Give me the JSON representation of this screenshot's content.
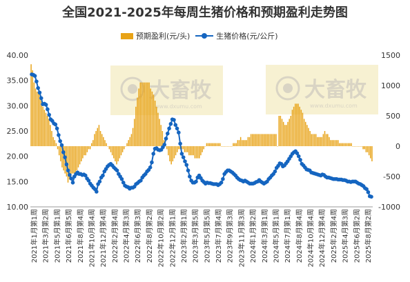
{
  "chart_data": {
    "type": "bar+line",
    "title": "全国2021-2025年每周生猪价格和预期盈利走势图",
    "legend": [
      "预期盈利(元/头)",
      "生猪价格(元/公斤)"
    ],
    "legend_position": "top",
    "grid": false,
    "y_left": {
      "ticks": [
        "10.00",
        "15.00",
        "20.00",
        "25.00",
        "30.00",
        "35.00",
        "40.00"
      ],
      "range": [
        10,
        40
      ]
    },
    "y_right": {
      "ticks": [
        "-1000",
        "-500",
        "0",
        "500",
        "1000",
        "1500"
      ],
      "range": [
        -1000,
        1500
      ]
    },
    "x_labels": [
      "2021年1月第1周",
      "2021年3月第2周",
      "2021年5月第1周",
      "2021年6月第5周",
      "2021年8月第4周",
      "2021年10月第4周",
      "2021年12月第4周",
      "2022年2月第4周",
      "2022年4月第3周",
      "2022年6月第3周",
      "2022年8月第2周",
      "2022年10月第2周",
      "2022年12月第1周",
      "2023年2月第1周",
      "2023年3月第5周",
      "2023年5月第5周",
      "2023年7月第4周",
      "2023年9月第3周",
      "2023年11月第3周",
      "2024年1月第2周",
      "2024年3月第1周",
      "2024年5月第1周",
      "2024年7月第1周",
      "2024年8月第4周",
      "2024年10月第4周",
      "2024年12月第4周",
      "2025年2月第4周",
      "2025年4月第3周",
      "2025年6月第2周",
      "2025年8月第2周"
    ],
    "series": [
      {
        "name": "预期盈利(元/头)",
        "axis": "right",
        "type": "bar",
        "values": [
          1350,
          1250,
          1050,
          950,
          900,
          900,
          850,
          750,
          650,
          600,
          550,
          500,
          450,
          350,
          250,
          150,
          100,
          50,
          -50,
          -150,
          -250,
          -350,
          -400,
          -450,
          -500,
          -600,
          -550,
          -500,
          -450,
          -450,
          -500,
          -400,
          -350,
          -300,
          -250,
          -200,
          -150,
          -150,
          -100,
          -50,
          -50,
          50,
          100,
          200,
          250,
          300,
          350,
          250,
          200,
          150,
          100,
          50,
          0,
          -50,
          -100,
          -150,
          -200,
          -250,
          -300,
          -250,
          -200,
          -150,
          -100,
          -50,
          0,
          50,
          100,
          150,
          200,
          300,
          450,
          650,
          800,
          950,
          1050,
          1050,
          1050,
          1050,
          1050,
          1050,
          1050,
          950,
          900,
          850,
          750,
          650,
          550,
          450,
          350,
          250,
          100,
          0,
          -50,
          -150,
          -250,
          -300,
          -250,
          -200,
          -150,
          -100,
          -50,
          -50,
          -50,
          -50,
          -100,
          -100,
          -100,
          -150,
          -150,
          -150,
          -150,
          -200,
          -200,
          -200,
          -200,
          -150,
          -100,
          -50,
          0,
          50,
          50,
          50,
          50,
          50,
          50,
          50,
          50,
          50,
          50,
          0,
          0,
          0,
          0,
          0,
          0,
          0,
          0,
          50,
          50,
          50,
          100,
          100,
          150,
          100,
          100,
          100,
          100,
          150,
          150,
          200,
          200,
          200,
          200,
          200,
          200,
          200,
          200,
          200,
          200,
          200,
          200,
          200,
          200,
          200,
          200,
          200,
          200,
          0,
          500,
          500,
          450,
          400,
          350,
          350,
          400,
          450,
          500,
          600,
          650,
          700,
          700,
          700,
          650,
          600,
          550,
          450,
          400,
          350,
          300,
          250,
          200,
          200,
          200,
          200,
          150,
          150,
          150,
          150,
          200,
          250,
          200,
          200,
          150,
          100,
          100,
          100,
          100,
          100,
          100,
          50,
          50,
          50,
          50,
          50,
          50,
          50,
          50,
          50,
          0,
          0,
          0,
          0,
          0,
          0,
          0,
          -50,
          -50,
          -100,
          -100,
          -150,
          -200,
          -250
        ]
      },
      {
        "name": "生猪价格(元/公斤)",
        "axis": "left",
        "type": "line",
        "values": [
          36.2,
          36.1,
          35.9,
          34.8,
          33.5,
          32.6,
          31.5,
          30.3,
          30.4,
          30.2,
          29.3,
          28.2,
          27.3,
          27.0,
          26.5,
          26.3,
          25.5,
          24.2,
          23.0,
          22.2,
          20.8,
          19.8,
          18.4,
          17.2,
          16.3,
          15.6,
          14.8,
          16.0,
          16.5,
          16.8,
          16.5,
          16.5,
          16.3,
          16.4,
          16.2,
          15.6,
          15.2,
          14.6,
          14.2,
          13.8,
          13.5,
          13.0,
          14.5,
          15.0,
          15.8,
          16.2,
          17.0,
          17.5,
          18.0,
          18.3,
          18.5,
          18.2,
          17.8,
          17.5,
          17.2,
          16.5,
          16.0,
          15.5,
          14.8,
          14.2,
          14.0,
          13.9,
          13.6,
          13.8,
          13.8,
          14.0,
          14.5,
          14.7,
          15.0,
          15.2,
          15.8,
          16.2,
          16.5,
          17.0,
          17.3,
          17.8,
          18.8,
          20.5,
          21.5,
          21.6,
          21.3,
          21.2,
          21.3,
          21.8,
          22.3,
          23.5,
          24.5,
          25.5,
          26.4,
          27.3,
          27.2,
          26.2,
          25.5,
          24.7,
          22.5,
          20.5,
          19.8,
          19.0,
          18.3,
          17.2,
          16.0,
          15.2,
          14.8,
          14.8,
          15.0,
          15.8,
          16.2,
          15.7,
          15.2,
          14.9,
          14.6,
          14.8,
          14.7,
          14.7,
          14.6,
          14.5,
          14.5,
          14.5,
          14.3,
          14.5,
          14.8,
          15.5,
          16.5,
          16.9,
          17.2,
          17.2,
          17.0,
          16.8,
          16.5,
          16.2,
          15.8,
          15.5,
          15.3,
          15.2,
          15.0,
          15.2,
          15.0,
          14.8,
          14.6,
          14.6,
          14.6,
          14.7,
          14.9,
          15.0,
          15.3,
          15.0,
          14.8,
          14.6,
          14.8,
          15.0,
          15.5,
          15.8,
          16.2,
          16.5,
          17.0,
          17.7,
          18.1,
          18.6,
          18.5,
          18.0,
          18.2,
          18.6,
          19.0,
          19.5,
          20.0,
          20.5,
          20.8,
          21.0,
          20.6,
          20.0,
          19.3,
          18.5,
          18.2,
          17.8,
          17.4,
          17.3,
          17.2,
          16.8,
          16.7,
          16.6,
          16.5,
          16.4,
          16.3,
          16.2,
          16.4,
          16.3,
          16.0,
          15.8,
          15.8,
          15.7,
          15.6,
          15.5,
          15.5,
          15.5,
          15.4,
          15.4,
          15.4,
          15.3,
          15.3,
          15.2,
          15.0,
          15.0,
          14.9,
          15.0,
          15.0,
          15.0,
          14.8,
          14.6,
          14.5,
          14.3,
          14.1,
          13.7,
          13.5,
          12.9,
          12.1,
          12.0
        ]
      }
    ]
  },
  "watermark": {
    "brand": "大畜牧",
    "url": "www.dxumu.com"
  },
  "colors": {
    "bar": "#E8A317",
    "line": "#1565C0",
    "watermark_bg": "#F7F1D2"
  }
}
